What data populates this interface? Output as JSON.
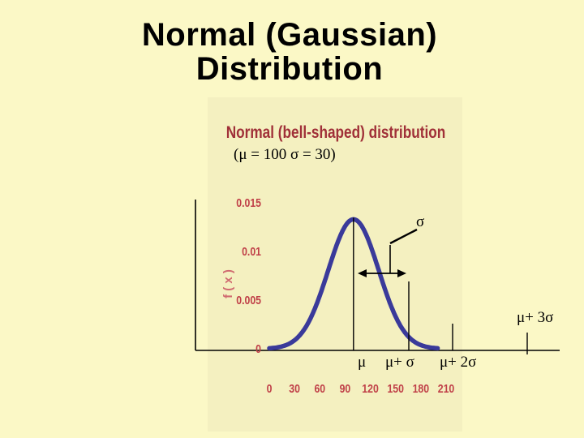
{
  "slide": {
    "title_line1": "Normal (Gaussian)",
    "title_line2": "Distribution"
  },
  "chart_data": {
    "type": "line",
    "title": "Normal (bell-shaped) distribution",
    "subtitle": "(μ = 100 σ = 30)",
    "ylabel": "f ( x )",
    "xlabel": "",
    "mean": 100,
    "sd": 30,
    "x_ticks": [
      0,
      30,
      60,
      90,
      120,
      150,
      180,
      210
    ],
    "y_ticks": [
      0,
      0.005,
      0.01,
      0.015
    ],
    "y_tick_labels": [
      "0",
      "0.005",
      "0.01",
      "0.015"
    ],
    "xlim": [
      0,
      210
    ],
    "ylim": [
      0,
      0.015
    ],
    "grid": false,
    "series": [
      {
        "x": [
          0,
          10,
          20,
          30,
          40,
          50,
          60,
          70,
          80,
          90,
          100,
          110,
          120,
          130,
          140,
          150,
          160,
          170,
          180,
          190,
          200
        ],
        "values": [
          0.0001,
          0.0002,
          0.0005,
          0.0009,
          0.0018,
          0.0033,
          0.0055,
          0.0081,
          0.0106,
          0.0126,
          0.0133,
          0.0126,
          0.0106,
          0.0081,
          0.0055,
          0.0033,
          0.0018,
          0.0009,
          0.0005,
          0.0002,
          0.0001
        ]
      }
    ],
    "annotations": {
      "sigma": "σ",
      "mu": "μ",
      "mu_plus_sigma": "μ+ σ",
      "mu_plus_2sigma": "μ+ 2σ",
      "mu_plus_3sigma": "μ+ 3σ"
    },
    "colors": {
      "curve": "#3a3a9a",
      "title": "#a03038",
      "axis_text": "#c04048",
      "background": "#fbf8c6"
    }
  }
}
